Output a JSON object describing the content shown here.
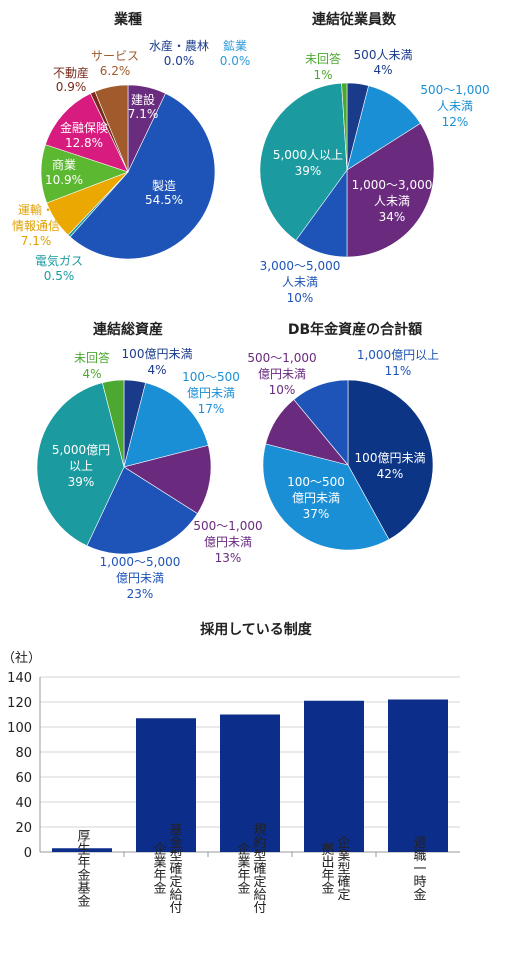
{
  "chart_data": [
    {
      "type": "pie",
      "title": "業種",
      "slices": [
        {
          "label": "建設",
          "value": 7.1,
          "value_text": "7.1%",
          "color": "#6a2c7e"
        },
        {
          "label": "製造",
          "value": 54.5,
          "value_text": "54.5%",
          "color": "#1e54b8"
        },
        {
          "label": "電気ガス",
          "value": 0.5,
          "value_text": "0.5%",
          "color": "#1b9ba0"
        },
        {
          "label": "運輸・情報通信",
          "value": 7.1,
          "value_text": "7.1%",
          "color": "#eaa800"
        },
        {
          "label": "商業",
          "value": 10.9,
          "value_text": "10.9%",
          "color": "#5bb830"
        },
        {
          "label": "金融保険",
          "value": 12.8,
          "value_text": "12.8%",
          "color": "#d81b7e"
        },
        {
          "label": "不動産",
          "value": 0.9,
          "value_text": "0.9%",
          "color": "#7a2a1a"
        },
        {
          "label": "サービス",
          "value": 6.2,
          "value_text": "6.2%",
          "color": "#a05a2c"
        },
        {
          "label": "水産・農林",
          "value": 0.0,
          "value_text": "0.0%",
          "color": "#1a3a8a"
        },
        {
          "label": "鉱業",
          "value": 0.0,
          "value_text": "0.0%",
          "color": "#2a9ad6"
        }
      ]
    },
    {
      "type": "pie",
      "title": "連結従業員数",
      "slices": [
        {
          "label": "500人未満",
          "value": 4,
          "value_text": "4%",
          "color": "#1a3a8a"
        },
        {
          "label": "500～1,000人未満",
          "value": 12,
          "value_text": "12%",
          "color": "#1b8fd6"
        },
        {
          "label": "1,000～3,000人未満",
          "value": 34,
          "value_text": "34%",
          "color": "#6a2a7e"
        },
        {
          "label": "3,000～5,000人未満",
          "value": 10,
          "value_text": "10%",
          "color": "#1e54b8"
        },
        {
          "label": "5,000人以上",
          "value": 39,
          "value_text": "39%",
          "color": "#1b9ba0"
        },
        {
          "label": "未回答",
          "value": 1,
          "value_text": "1%",
          "color": "#4ca830"
        }
      ]
    },
    {
      "type": "pie",
      "title": "連結総資産",
      "slices": [
        {
          "label": "100億円未満",
          "value": 4,
          "value_text": "4%",
          "color": "#1a3a8a"
        },
        {
          "label": "100～500億円未満",
          "value": 17,
          "value_text": "17%",
          "color": "#1b8fd6"
        },
        {
          "label": "500～1,000億円未満",
          "value": 13,
          "value_text": "13%",
          "color": "#6a2a7e"
        },
        {
          "label": "1,000～5,000億円未満",
          "value": 23,
          "value_text": "23%",
          "color": "#1e54b8"
        },
        {
          "label": "5,000億円以上",
          "value": 39,
          "value_text": "39%",
          "color": "#1b9ba0"
        },
        {
          "label": "未回答",
          "value": 4,
          "value_text": "4%",
          "color": "#4ca830"
        }
      ]
    },
    {
      "type": "pie",
      "title": "DB年金資産の合計額",
      "slices": [
        {
          "label": "100億円未満",
          "value": 42,
          "value_text": "42%",
          "color": "#0d3586"
        },
        {
          "label": "100～500億円未満",
          "value": 37,
          "value_text": "37%",
          "color": "#1b8fd6"
        },
        {
          "label": "500～1,000億円未満",
          "value": 10,
          "value_text": "10%",
          "color": "#6a2a7e"
        },
        {
          "label": "1,000億円以上",
          "value": 11,
          "value_text": "11%",
          "color": "#1e54b8"
        }
      ]
    },
    {
      "type": "bar",
      "title": "採用している制度",
      "ylabel": "（社）",
      "ylim": [
        0,
        140
      ],
      "yticks": [
        0,
        20,
        40,
        60,
        80,
        100,
        120,
        140
      ],
      "categories": [
        "厚生年金基金",
        "基金型確定給付企業年金",
        "規約型確定給付企業年金",
        "企業型確定拠出年金",
        "退職一時金"
      ],
      "category_lines": [
        [
          "厚生年金基金"
        ],
        [
          "基金型確定給付",
          "企業年金"
        ],
        [
          "規約型確定給付",
          "企業年金"
        ],
        [
          "企業型確定",
          "拠出年金"
        ],
        [
          "退職一時金"
        ]
      ],
      "values": [
        3,
        107,
        110,
        121,
        122
      ],
      "bar_color": "#0d2d8a"
    }
  ]
}
